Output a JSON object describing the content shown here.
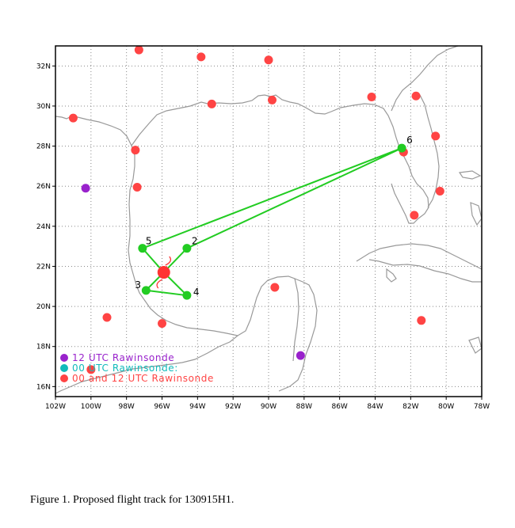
{
  "caption": "Figure 1. Proposed flight track for 130915H1.",
  "map": {
    "lon_range": [
      -102,
      -78
    ],
    "lat_range": [
      15.5,
      33
    ],
    "x_ticks": [
      {
        "lon": -102,
        "label": "102W"
      },
      {
        "lon": -100,
        "label": "100W"
      },
      {
        "lon": -98,
        "label": "98W"
      },
      {
        "lon": -96,
        "label": "96W"
      },
      {
        "lon": -94,
        "label": "94W"
      },
      {
        "lon": -92,
        "label": "92W"
      },
      {
        "lon": -90,
        "label": "90W"
      },
      {
        "lon": -88,
        "label": "88W"
      },
      {
        "lon": -86,
        "label": "86W"
      },
      {
        "lon": -84,
        "label": "84W"
      },
      {
        "lon": -82,
        "label": "82W"
      },
      {
        "lon": -80,
        "label": "80W"
      },
      {
        "lon": -78,
        "label": "78W"
      }
    ],
    "y_ticks": [
      {
        "lat": 16,
        "label": "16N"
      },
      {
        "lat": 18,
        "label": "18N"
      },
      {
        "lat": 20,
        "label": "20N"
      },
      {
        "lat": 22,
        "label": "22N"
      },
      {
        "lat": 24,
        "label": "24N"
      },
      {
        "lat": 26,
        "label": "26N"
      },
      {
        "lat": 28,
        "label": "28N"
      },
      {
        "lat": 30,
        "label": "30N"
      },
      {
        "lat": 32,
        "label": "32N"
      }
    ],
    "grid": "dotted",
    "colors": {
      "track": "#22cc22",
      "waypoint": "#22cc22",
      "storm": "#ff3333",
      "coast": "#999999",
      "sonde_12utc": "#9922cc",
      "sonde_00utc": "#11bbbb",
      "sonde_both": "#ff4444"
    }
  },
  "storm_center": {
    "lon": -95.9,
    "lat": 21.7
  },
  "waypoints": [
    {
      "label": "",
      "lon": -95.9,
      "lat": 21.7
    },
    {
      "label": "2",
      "lon": -94.6,
      "lat": 22.9
    },
    {
      "label": "6",
      "lon": -82.5,
      "lat": 27.9
    },
    {
      "label": "5",
      "lon": -97.1,
      "lat": 22.9
    },
    {
      "label": "3",
      "lon": -96.9,
      "lat": 20.8
    },
    {
      "label": "4",
      "lon": -94.6,
      "lat": 20.55
    }
  ],
  "track_order": [
    0,
    1,
    2,
    3,
    0,
    4,
    5,
    0
  ],
  "rawinsondes": [
    {
      "type": "both",
      "lon": -97.3,
      "lat": 32.8
    },
    {
      "type": "both",
      "lon": -93.8,
      "lat": 32.45
    },
    {
      "type": "both",
      "lon": -90.0,
      "lat": 32.3
    },
    {
      "type": "both",
      "lon": -101.0,
      "lat": 29.4
    },
    {
      "type": "both",
      "lon": -93.2,
      "lat": 30.1
    },
    {
      "type": "both",
      "lon": -89.8,
      "lat": 30.3
    },
    {
      "type": "both",
      "lon": -84.2,
      "lat": 30.45
    },
    {
      "type": "both",
      "lon": -81.7,
      "lat": 30.5
    },
    {
      "type": "both",
      "lon": -97.5,
      "lat": 27.8
    },
    {
      "type": "both",
      "lon": -82.4,
      "lat": 27.7
    },
    {
      "type": "both",
      "lon": -80.6,
      "lat": 28.5
    },
    {
      "type": "both",
      "lon": -97.4,
      "lat": 25.95
    },
    {
      "type": "both",
      "lon": -80.35,
      "lat": 25.75
    },
    {
      "type": "both",
      "lon": -81.8,
      "lat": 24.55
    },
    {
      "type": "both",
      "lon": -89.65,
      "lat": 20.95
    },
    {
      "type": "both",
      "lon": -99.1,
      "lat": 19.45
    },
    {
      "type": "both",
      "lon": -96.0,
      "lat": 19.15
    },
    {
      "type": "both",
      "lon": -81.4,
      "lat": 19.3
    },
    {
      "type": "both",
      "lon": -100.0,
      "lat": 16.85
    },
    {
      "type": "12",
      "lon": -100.3,
      "lat": 25.9
    },
    {
      "type": "12",
      "lon": -88.2,
      "lat": 17.55
    }
  ],
  "legend": [
    {
      "label": "12 UTC Rawinsonde",
      "color": "#9922cc"
    },
    {
      "label": "00 UTC Rawinsonde:",
      "color": "#11bbbb"
    },
    {
      "label": "00 and 12 UTC Rawinsonde",
      "color": "#ff4444"
    }
  ]
}
